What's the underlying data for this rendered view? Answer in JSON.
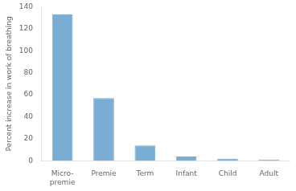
{
  "chart_data": {
    "type": "bar",
    "categories": [
      "Micro-\npremie",
      "Premie",
      "Term",
      "Infant",
      "Child",
      "Adult"
    ],
    "values": [
      133,
      57,
      14,
      4,
      2,
      1
    ],
    "color": "#7aadd4",
    "ylabel": "Percent increase in work of breathing",
    "ylim": [
      0,
      140
    ],
    "yticks": [
      0,
      20,
      40,
      60,
      80,
      100,
      120,
      140
    ],
    "grid": false
  }
}
